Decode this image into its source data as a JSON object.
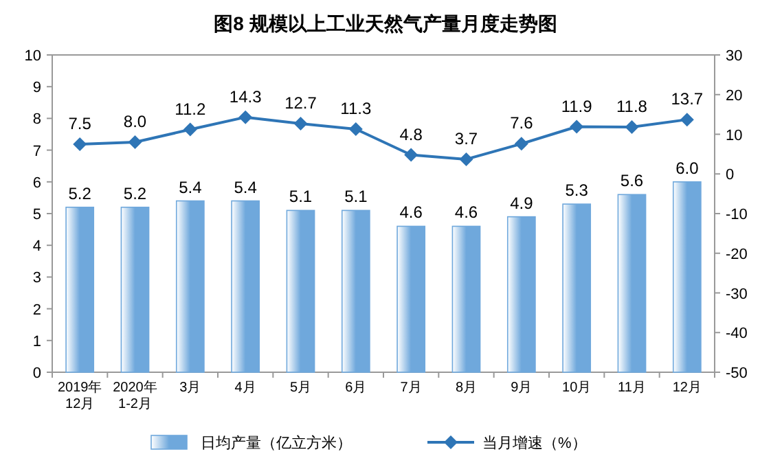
{
  "chart_data": {
    "type": "bar",
    "title": "图8  规模以上工业天然气产量月度走势图",
    "categories": [
      "2019年\n12月",
      "2020年\n1-2月",
      "3月",
      "4月",
      "5月",
      "6月",
      "7月",
      "8月",
      "9月",
      "10月",
      "11月",
      "12月"
    ],
    "series": [
      {
        "name": "日均产量（亿立方米）",
        "color": "#6fa8dc",
        "values": [
          5.2,
          5.2,
          5.4,
          5.4,
          5.1,
          5.1,
          4.6,
          4.6,
          4.9,
          5.3,
          5.6,
          6.0
        ],
        "value_labels": [
          "5.2",
          "5.2",
          "5.4",
          "5.4",
          "5.1",
          "5.1",
          "4.6",
          "4.6",
          "4.9",
          "5.3",
          "5.6",
          "6.0"
        ]
      },
      {
        "name": "当月增速（%）",
        "type": "line",
        "axis": "y2",
        "color": "#2e75b6",
        "marker": "diamond",
        "values": [
          7.5,
          8.0,
          11.2,
          14.3,
          12.7,
          11.3,
          4.8,
          3.7,
          7.6,
          11.9,
          11.8,
          13.7
        ],
        "value_labels": [
          "7.5",
          "8.0",
          "11.2",
          "14.3",
          "12.7",
          "11.3",
          "4.8",
          "3.7",
          "7.6",
          "11.9",
          "11.8",
          "13.7"
        ]
      }
    ],
    "ylim": [
      0,
      10
    ],
    "yticks": [
      0,
      1,
      2,
      3,
      4,
      5,
      6,
      7,
      8,
      9,
      10
    ],
    "y2lim": [
      -50,
      30
    ],
    "y2ticks": [
      -50,
      -40,
      -30,
      -20,
      -10,
      0,
      10,
      20,
      30
    ],
    "legend": "bottom",
    "grid": false
  }
}
